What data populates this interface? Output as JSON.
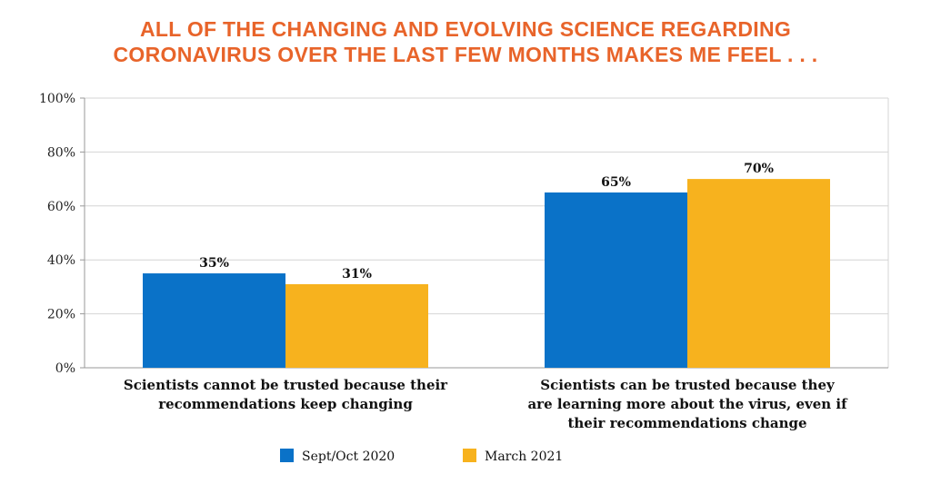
{
  "chart_data": {
    "type": "bar",
    "title_lines": [
      "ALL OF THE CHANGING AND EVOLVING SCIENCE REGARDING",
      "CORONAVIRUS OVER THE LAST FEW MONTHS MAKES ME FEEL . . ."
    ],
    "categories": [
      [
        "Scientists cannot be trusted because their",
        "recommendations keep changing"
      ],
      [
        "Scientists can be trusted because they",
        "are learning more about the virus, even if",
        "their recommendations change"
      ]
    ],
    "series": [
      {
        "name": "Sept/Oct 2020",
        "color": "#0A72C8",
        "values": [
          35,
          65
        ],
        "labels": [
          "35%",
          "65%"
        ]
      },
      {
        "name": "March 2021",
        "color": "#F7B21E",
        "values": [
          31,
          70
        ],
        "labels": [
          "31%",
          "70%"
        ]
      }
    ],
    "ylim": [
      0,
      100
    ],
    "yticks": [
      {
        "value": 0,
        "label": "0%"
      },
      {
        "value": 20,
        "label": "20%"
      },
      {
        "value": 40,
        "label": "40%"
      },
      {
        "value": 60,
        "label": "60%"
      },
      {
        "value": 80,
        "label": "80%"
      },
      {
        "value": 100,
        "label": "100%"
      }
    ],
    "grid": true,
    "legend_position": "bottom"
  }
}
